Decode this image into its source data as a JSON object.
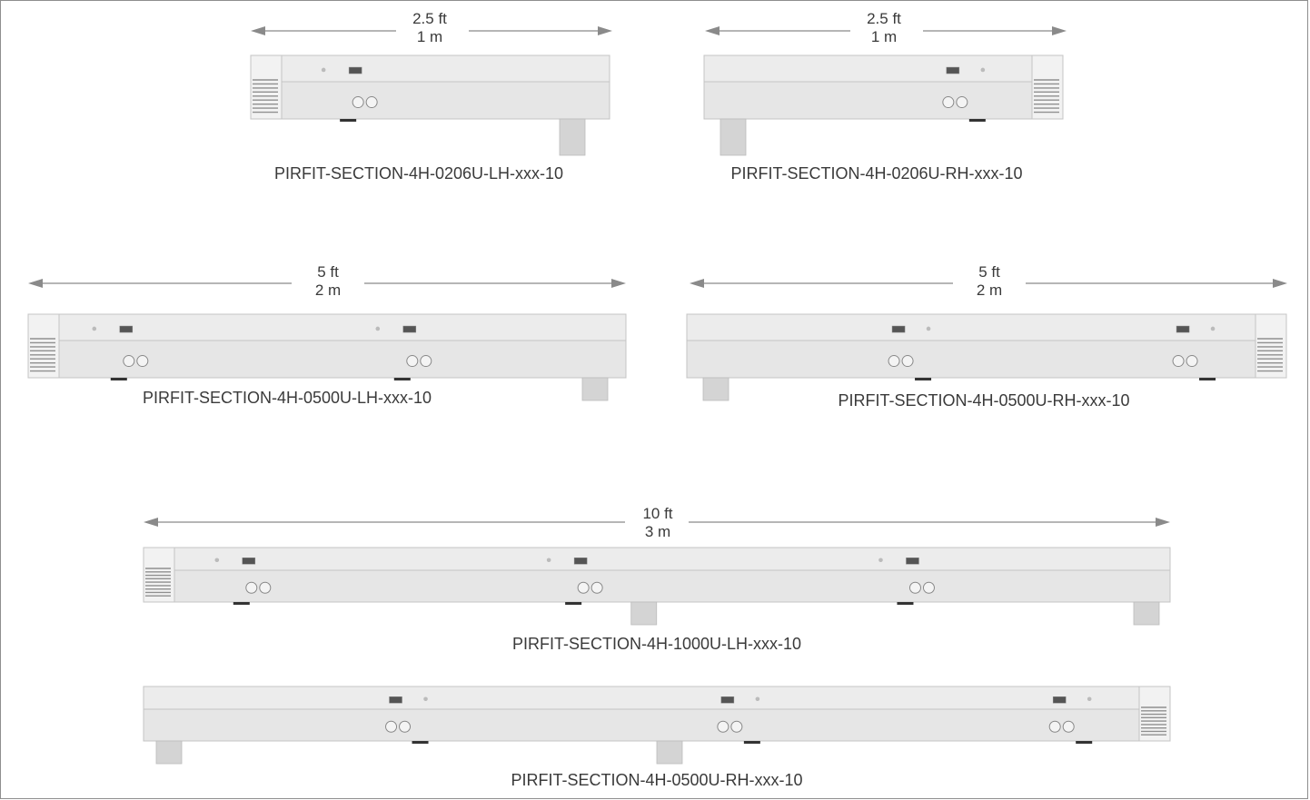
{
  "sections": [
    {
      "id": "s1",
      "dim_ft": "2.5 ft",
      "dim_m": "1 m",
      "part": "PIRFIT-SECTION-4H-0206U-LH-xxx-10",
      "hand": "LH",
      "modules": 1
    },
    {
      "id": "s2",
      "dim_ft": "2.5 ft",
      "dim_m": "1 m",
      "part": "PIRFIT-SECTION-4H-0206U-RH-xxx-10",
      "hand": "RH",
      "modules": 1
    },
    {
      "id": "s3",
      "dim_ft": "5 ft",
      "dim_m": "2 m",
      "part": "PIRFIT-SECTION-4H-0500U-LH-xxx-10",
      "hand": "LH",
      "modules": 2
    },
    {
      "id": "s4",
      "dim_ft": "5 ft",
      "dim_m": "2 m",
      "part": "PIRFIT-SECTION-4H-0500U-RH-xxx-10",
      "hand": "RH",
      "modules": 2
    },
    {
      "id": "s5",
      "dim_ft": "10 ft",
      "dim_m": "3 m",
      "part": "PIRFIT-SECTION-4H-1000U-LH-xxx-10",
      "hand": "LH",
      "modules": 3
    },
    {
      "id": "s6",
      "dim_ft": "",
      "dim_m": "",
      "part": "PIRFIT-SECTION-4H-0500U-RH-xxx-10",
      "hand": "RH",
      "modules": 3
    }
  ],
  "colors": {
    "text": "#3a3a3a",
    "arrow": "#8a8a8a",
    "body": "#e6e6e6",
    "body_top": "#ececec",
    "line": "#c4c4c4",
    "vent": "#8f8f8f",
    "leg": "#d4d4d4"
  }
}
